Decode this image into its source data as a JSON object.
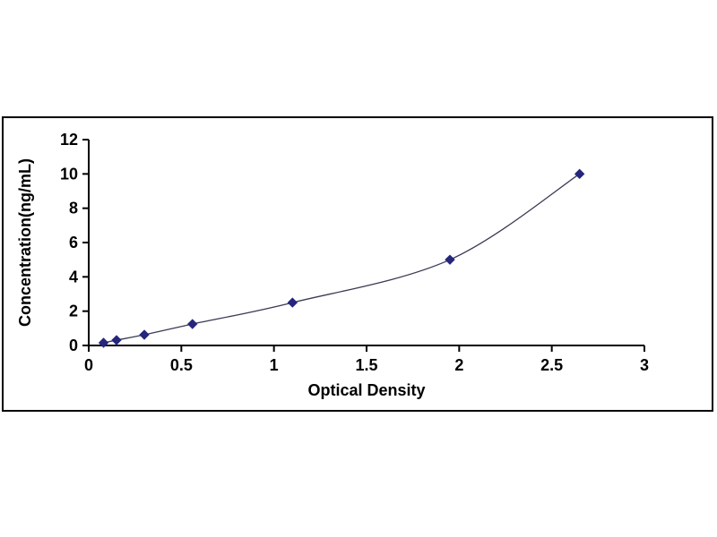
{
  "chart_data": {
    "type": "line",
    "title": "",
    "xlabel": "Optical Density",
    "ylabel": "Concentration(ng/mL)",
    "x": [
      0.08,
      0.15,
      0.3,
      0.56,
      1.1,
      1.95,
      2.65
    ],
    "y": [
      0.156,
      0.312,
      0.625,
      1.25,
      2.5,
      5,
      10
    ],
    "xlim": [
      0,
      3
    ],
    "ylim": [
      0,
      12
    ],
    "xticks": [
      0,
      0.5,
      1,
      1.5,
      2,
      2.5,
      3
    ],
    "xtick_labels": [
      "0",
      "0.5",
      "1",
      "1.5",
      "2",
      "2.5",
      "3"
    ],
    "yticks": [
      0,
      2,
      4,
      6,
      8,
      10,
      12
    ],
    "ytick_labels": [
      "0",
      "2",
      "4",
      "6",
      "8",
      "10",
      "12"
    ],
    "grid": false,
    "legend": null,
    "marker": "diamond",
    "marker_color": "#26267d",
    "line_color": "#3a3a55",
    "axis_color": "#000000",
    "frame_border_color": "#000000",
    "background_color": "#ffffff"
  }
}
